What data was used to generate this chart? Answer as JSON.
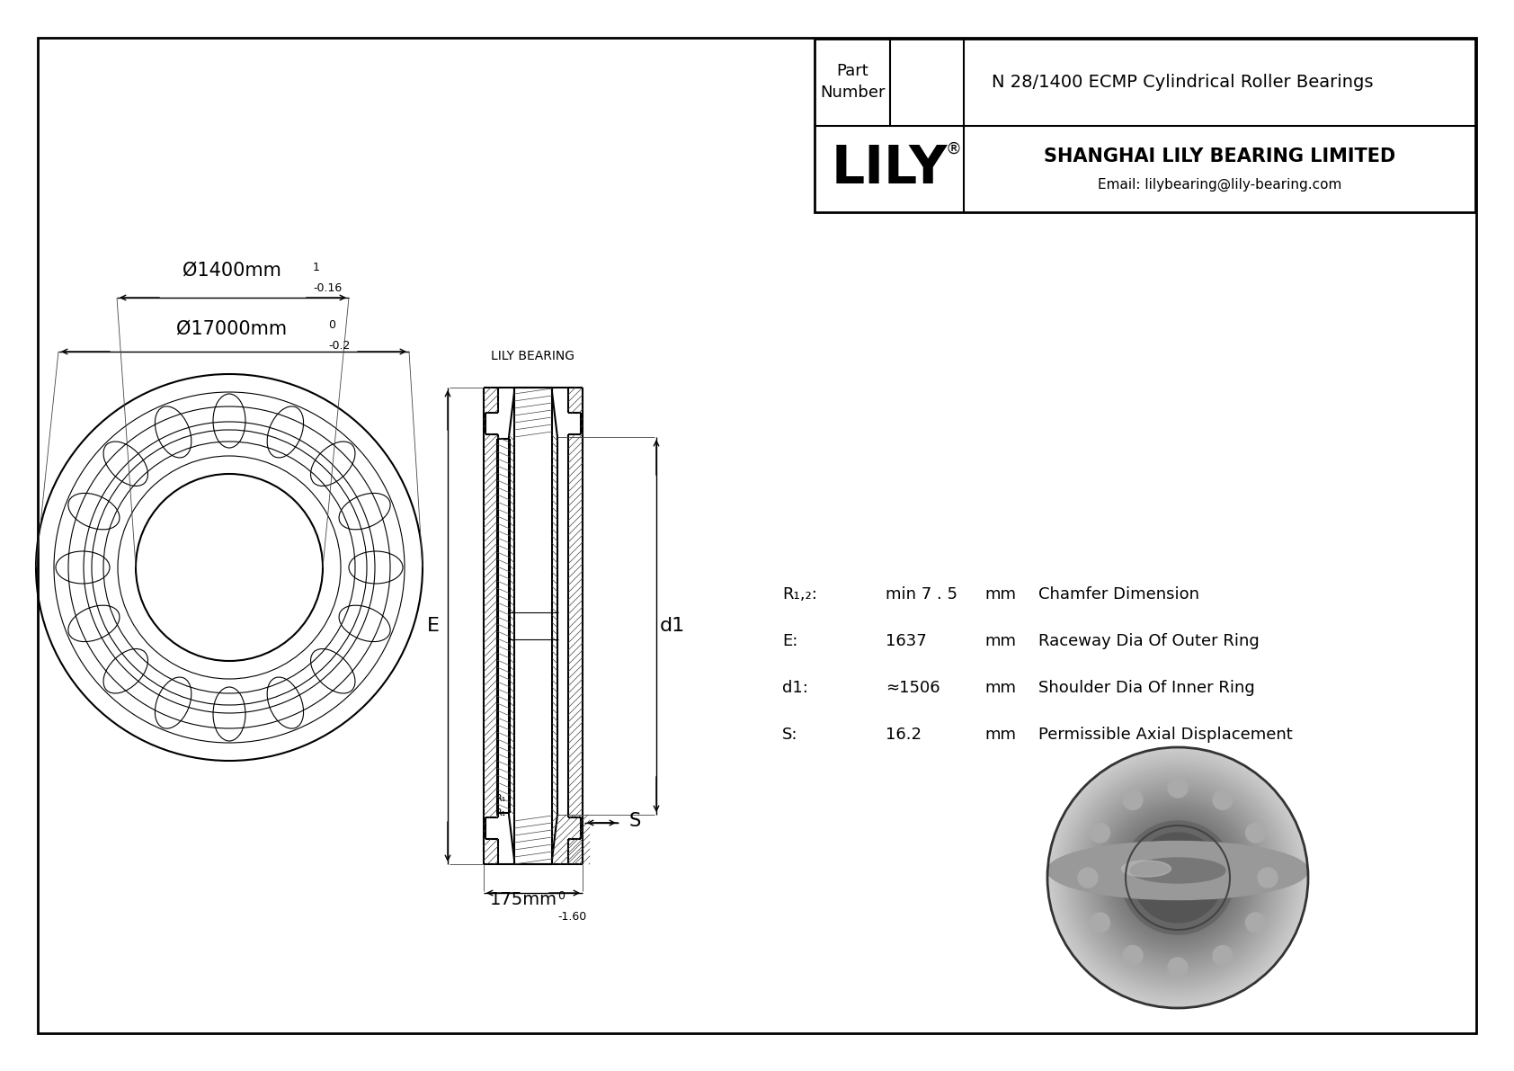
{
  "bg_color": "#ffffff",
  "line_color": "#000000",
  "outer_diameter_label": "Ø17000mm",
  "outer_tolerance_top": "0",
  "outer_tolerance_bot": "-0.2",
  "inner_diameter_label": "Ø1400mm",
  "inner_tolerance_top": "1",
  "inner_tolerance_bot": "-0.16",
  "width_label": "175mm",
  "width_tolerance_top": "0",
  "width_tolerance_bot": "-1.60",
  "dim_S_label": "S",
  "dim_E_label": "E",
  "dim_d1_label": "d1",
  "specs": [
    {
      "symbol": "R₁,₂:",
      "value": "min 7 . 5",
      "unit": "mm",
      "desc": "Chamfer Dimension"
    },
    {
      "symbol": "E:",
      "value": "1637",
      "unit": "mm",
      "desc": "Raceway Dia Of Outer Ring"
    },
    {
      "symbol": "d1:",
      "value": "≈1506",
      "unit": "mm",
      "desc": "Shoulder Dia Of Inner Ring"
    },
    {
      "symbol": "S:",
      "value": "16.2",
      "unit": "mm",
      "desc": "Permissible Axial Displacement"
    }
  ],
  "company_name": "LILY",
  "company_reg": "®",
  "company_line1": "SHANGHAI LILY BEARING LIMITED",
  "company_line2": "Email: lilybearing@lily-bearing.com",
  "part_label": "Part\nNumber",
  "part_number": "N 28/1400 ECMP Cylindrical Roller Bearings",
  "lily_bearing_label": "LILY BEARING"
}
